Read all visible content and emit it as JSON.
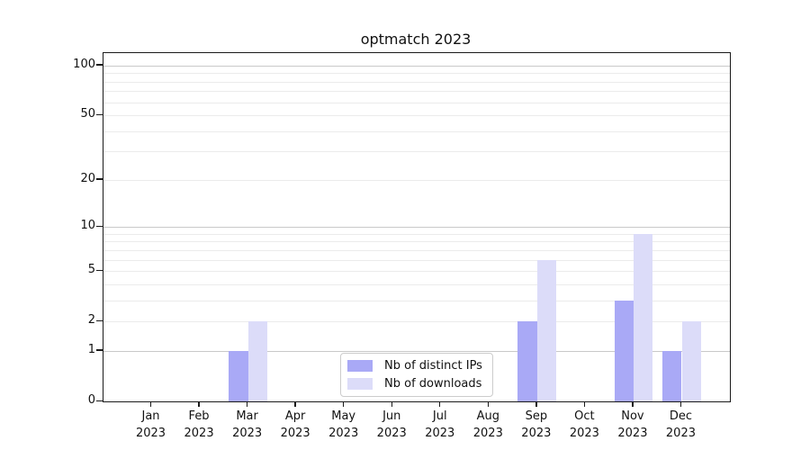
{
  "title": "optmatch 2023",
  "chart_data": {
    "type": "bar",
    "title": "optmatch 2023",
    "categories": [
      "Jan",
      "Feb",
      "Mar",
      "Apr",
      "May",
      "Jun",
      "Jul",
      "Aug",
      "Sep",
      "Oct",
      "Nov",
      "Dec"
    ],
    "category_year": "2023",
    "series": [
      {
        "name": "Nb of distinct IPs",
        "color": "#a9a9f6",
        "values": [
          0,
          0,
          1,
          0,
          0,
          0,
          0,
          0,
          2,
          0,
          3,
          1
        ]
      },
      {
        "name": "Nb of downloads",
        "color": "#dcdcf9",
        "values": [
          0,
          0,
          2,
          0,
          0,
          0,
          0,
          0,
          6,
          0,
          9,
          2
        ]
      }
    ],
    "xlabel": "",
    "ylabel": "",
    "y_axis": {
      "scale": "log10(1+x)",
      "labeled_ticks": [
        0,
        1,
        2,
        5,
        10,
        20,
        50,
        100
      ],
      "major_gridline_ticks": [
        1,
        10,
        100
      ],
      "minor_gridline_ticks": [
        3,
        4,
        6,
        7,
        8,
        9,
        30,
        40,
        60,
        70,
        80,
        90
      ],
      "ylim_top_value": 115
    },
    "grid": true,
    "legend_position": "bottom-center"
  },
  "colors": {
    "bar_distinct_ips": "#a9a9f6",
    "bar_downloads": "#dcdcf9",
    "gridline_major": "#c9c9c9",
    "gridline_minor": "#ebebeb",
    "axis": "#1a1a1a",
    "text": "#111111",
    "legend_border": "#cccccc",
    "background": "#ffffff"
  }
}
